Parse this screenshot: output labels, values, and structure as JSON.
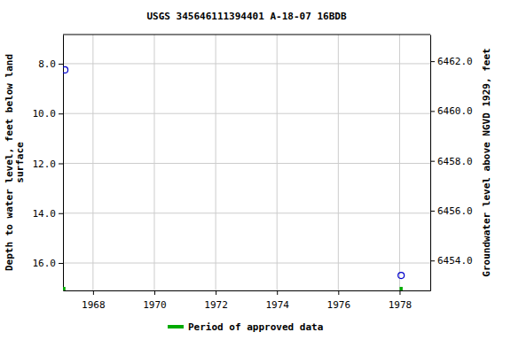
{
  "chart_data": {
    "type": "scatter",
    "title": "USGS 345646111394401 A-18-07 16BDB",
    "ylabel": [
      "Depth to water level, feet below land",
      "surface"
    ],
    "y2label": "Groundwater level above NGVD 1929, feet",
    "x": [
      1967.08,
      1978.05
    ],
    "series": [
      {
        "color": "#0000cc",
        "marker": "circle",
        "values": [
          8.25,
          16.5
        ]
      },
      {
        "name": "Period of approved data",
        "color": "#00aa00",
        "type": "bar",
        "approved_periods": [
          [
            1967.0,
            1967.1
          ],
          [
            1978.0,
            1978.1
          ]
        ]
      }
    ],
    "xlim": [
      1967.02,
      1979.0
    ],
    "xticks": [
      1968,
      1970,
      1972,
      1974,
      1976,
      1978
    ],
    "ylim": [
      17.1,
      6.83
    ],
    "yticks": [
      {
        "value": 8,
        "label": "8.0"
      },
      {
        "value": 10,
        "label": "10.0"
      },
      {
        "value": 12,
        "label": "12.0"
      },
      {
        "value": 14,
        "label": "14.0"
      },
      {
        "value": 16,
        "label": "16.0"
      }
    ],
    "y2lim": [
      6452.8,
      6463.07
    ],
    "y2ticks": [
      {
        "value": 6454,
        "label": "6454.0"
      },
      {
        "value": 6456,
        "label": "6456.0"
      },
      {
        "value": 6458,
        "label": "6458.0"
      },
      {
        "value": 6460,
        "label": "6460.0"
      },
      {
        "value": 6462,
        "label": "6462.0"
      }
    ],
    "grid": true,
    "legend": "bottom"
  }
}
